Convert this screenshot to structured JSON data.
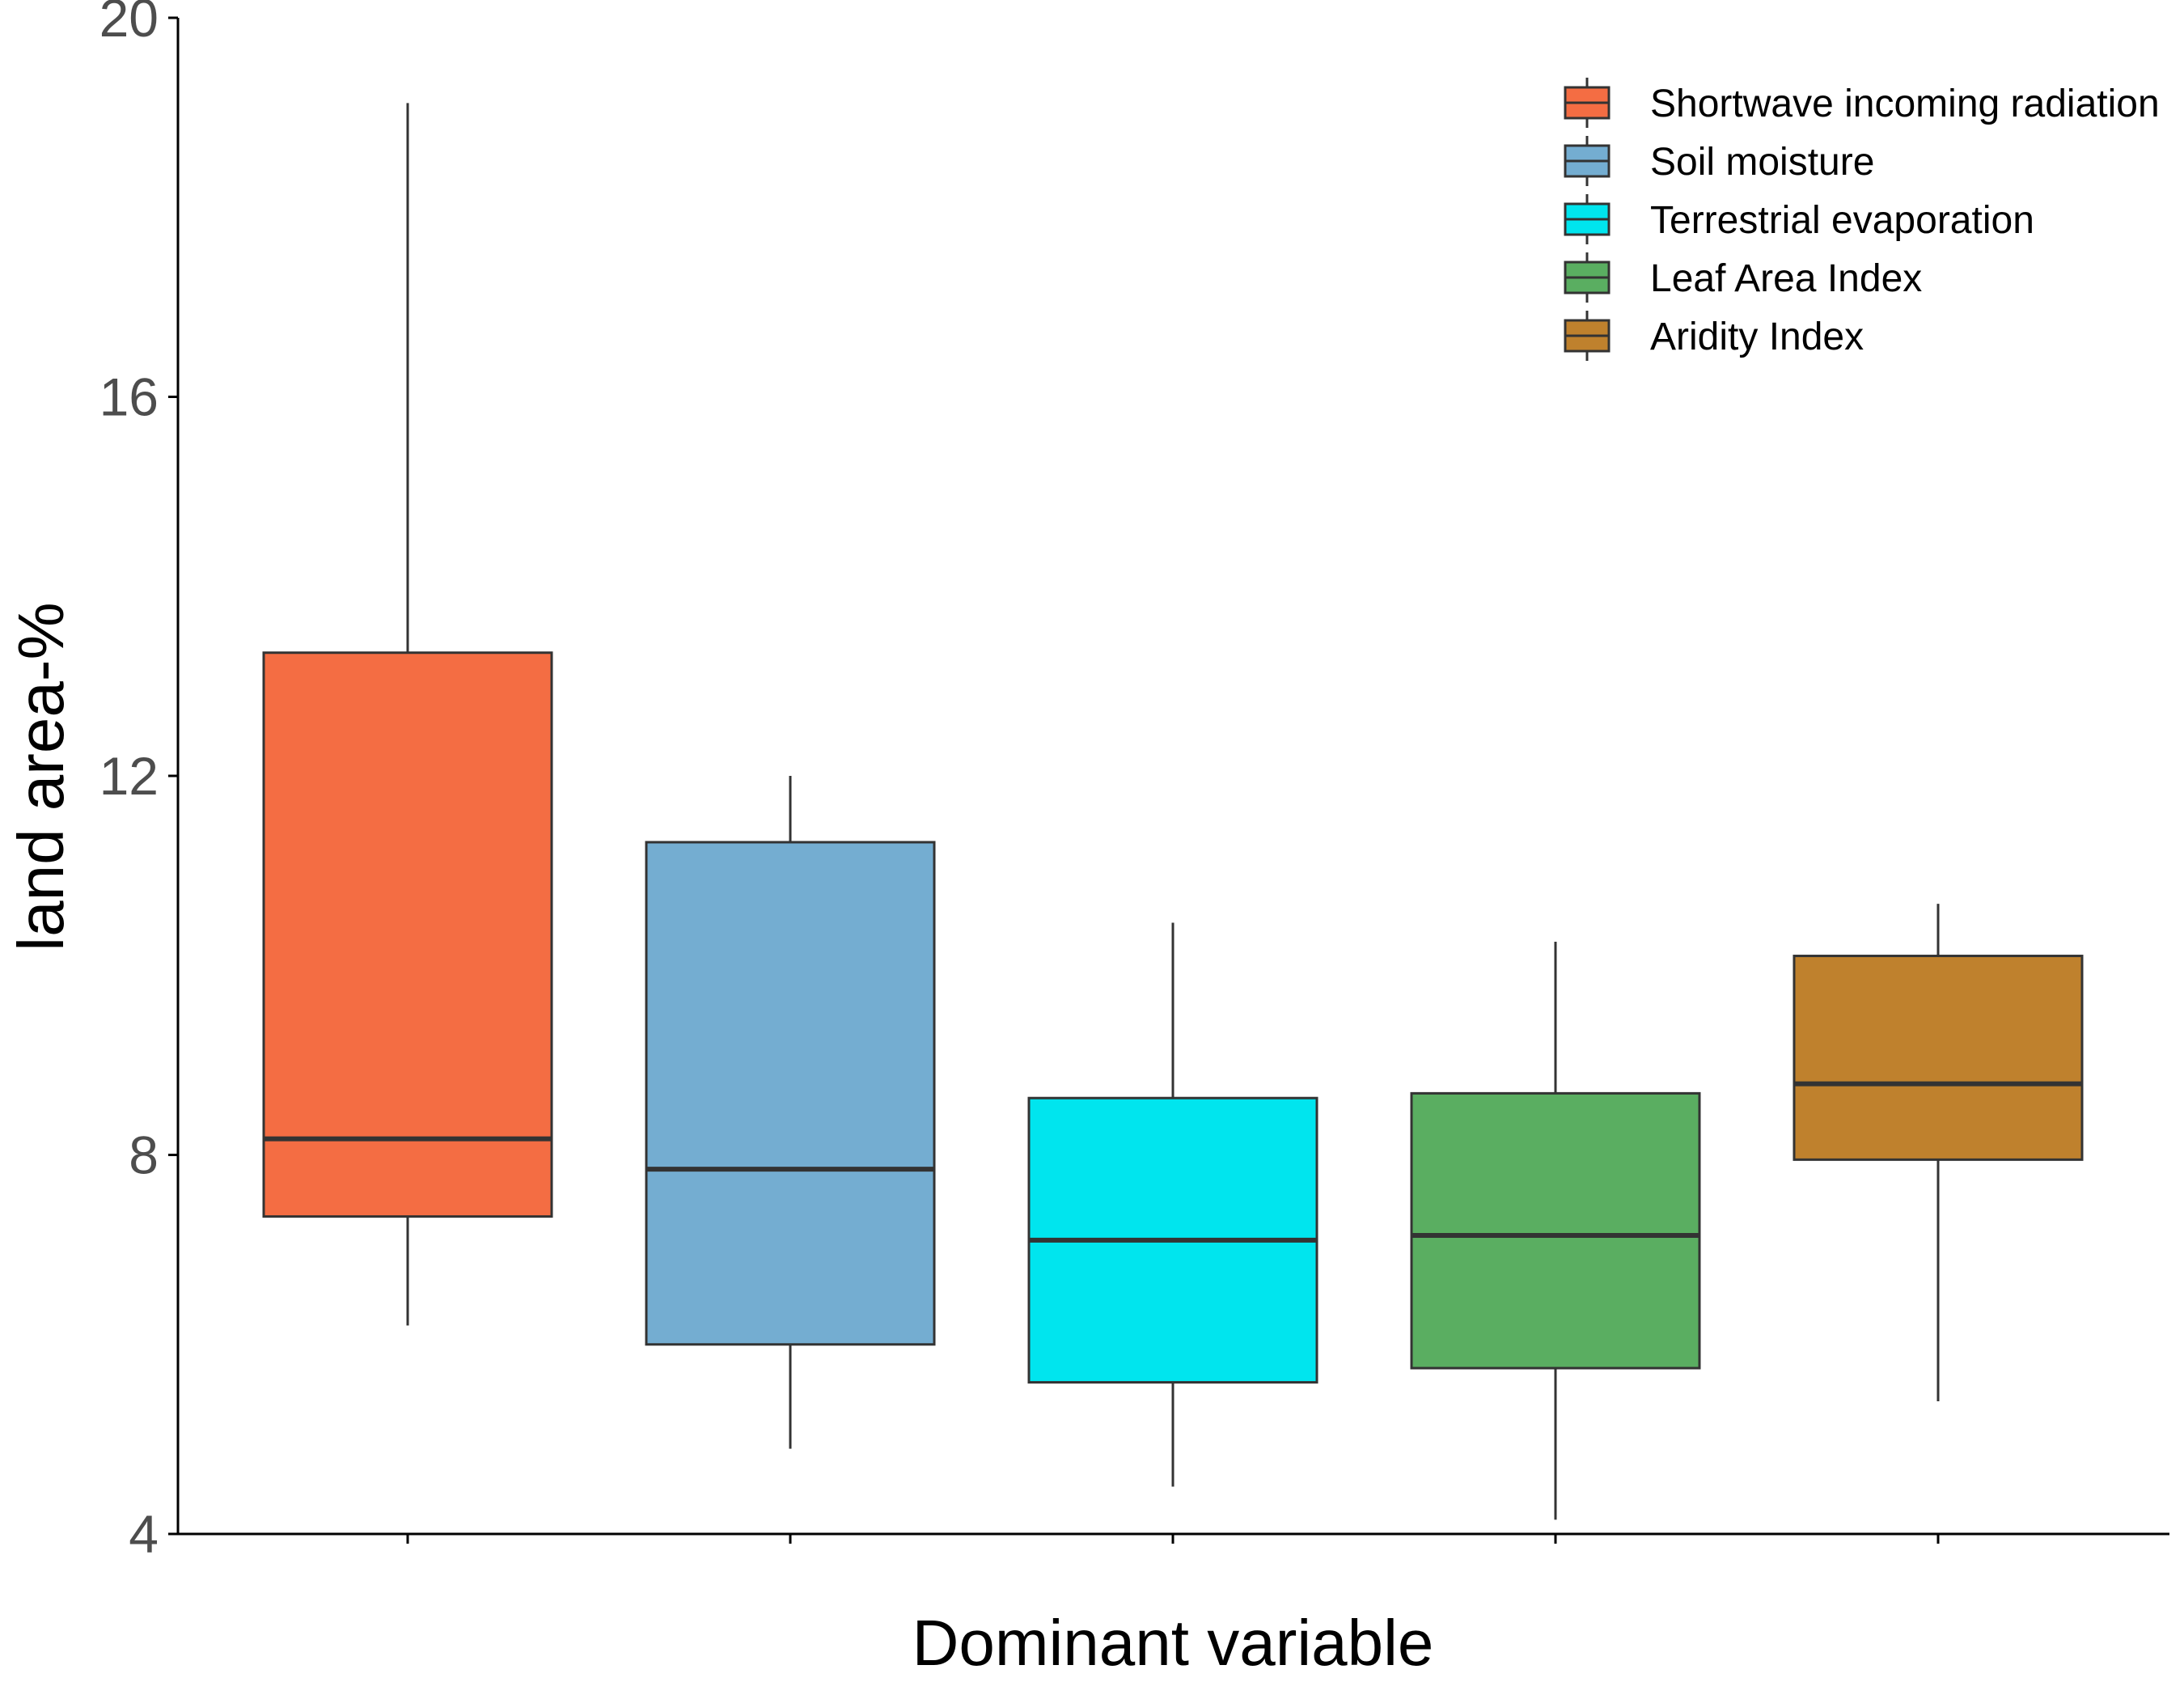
{
  "chart_data": {
    "type": "boxplot",
    "xlabel": "Dominant variable",
    "ylabel": "land area-%",
    "ylim": [
      4,
      20
    ],
    "yticks": [
      4,
      8,
      12,
      16,
      20
    ],
    "grid": false,
    "legend_position": "top-right",
    "series": [
      {
        "name": "Shortwave incoming radiation",
        "color": "#f46d43",
        "whisker_low": 6.2,
        "q1": 7.35,
        "median": 8.17,
        "q3": 13.3,
        "whisker_high": 19.1
      },
      {
        "name": "Soil moisture",
        "color": "#74add1",
        "whisker_low": 4.9,
        "q1": 6.0,
        "median": 7.85,
        "q3": 11.3,
        "whisker_high": 12.0
      },
      {
        "name": "Terrestrial evaporation",
        "color": "#00e5ee",
        "whisker_low": 4.5,
        "q1": 5.6,
        "median": 7.1,
        "q3": 8.6,
        "whisker_high": 10.45
      },
      {
        "name": "Leaf Area Index",
        "color": "#5aae61",
        "whisker_low": 4.15,
        "q1": 5.75,
        "median": 7.15,
        "q3": 8.65,
        "whisker_high": 10.25
      },
      {
        "name": "Aridity Index",
        "color": "#bf812d",
        "whisker_low": 5.4,
        "q1": 7.95,
        "median": 8.75,
        "q3": 10.1,
        "whisker_high": 10.65
      }
    ]
  }
}
